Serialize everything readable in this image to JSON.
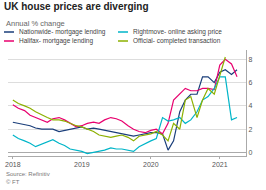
{
  "chart_data": {
    "type": "line",
    "title": "UK house prices are diverging",
    "subtitle": "Annual % change",
    "annotations": [
      "Source: Refinitiv\n© FT"
    ],
    "x": [
      2018.0,
      2018.08,
      2018.17,
      2018.25,
      2018.33,
      2018.42,
      2018.5,
      2018.58,
      2018.67,
      2018.75,
      2018.83,
      2018.92,
      2019.0,
      2019.08,
      2019.17,
      2019.25,
      2019.33,
      2019.42,
      2019.5,
      2019.58,
      2019.67,
      2019.75,
      2019.83,
      2019.92,
      2020.0,
      2020.08,
      2020.17,
      2020.25,
      2020.33,
      2020.42,
      2020.5,
      2020.58,
      2020.67,
      2020.75,
      2020.83,
      2020.92,
      2021.0,
      2021.08,
      2021.17,
      2021.25
    ],
    "series": [
      {
        "name": "Nationwide- mortgage lending",
        "color": "#1a3e7a",
        "values": [
          2.6,
          2.5,
          2.4,
          2.3,
          2.1,
          2.0,
          2.0,
          2.0,
          1.8,
          1.9,
          2.0,
          2.1,
          2.2,
          2.0,
          2.1,
          2.0,
          1.9,
          1.8,
          1.7,
          1.6,
          1.5,
          1.4,
          1.5,
          1.6,
          1.7,
          1.7,
          1.6,
          0.2,
          1.0,
          3.5,
          4.5,
          5.0,
          5.0,
          6.5,
          6.5,
          6.0,
          6.9,
          7.1,
          6.7,
          7.1
        ]
      },
      {
        "name": "Halifax- mortgage lending",
        "color": "#e8006e",
        "values": [
          4.1,
          3.8,
          3.6,
          3.2,
          3.0,
          2.8,
          2.6,
          2.9,
          3.0,
          2.8,
          2.5,
          2.2,
          2.3,
          2.5,
          2.6,
          2.5,
          2.8,
          3.0,
          2.9,
          2.7,
          2.3,
          2.0,
          1.8,
          1.7,
          1.9,
          2.0,
          1.6,
          2.5,
          4.5,
          5.0,
          5.5,
          5.3,
          5.3,
          5.5,
          5.5,
          5.4,
          7.5,
          8.0,
          7.6,
          6.5
        ]
      },
      {
        "name": "Rightmove- online asking price",
        "color": "#00b5c8",
        "values": [
          1.5,
          1.2,
          1.0,
          0.8,
          0.5,
          0.7,
          0.9,
          1.1,
          0.8,
          0.6,
          0.3,
          0.2,
          0.1,
          -0.1,
          0.0,
          0.1,
          0.2,
          0.4,
          0.3,
          0.3,
          0.2,
          0.1,
          0.5,
          0.8,
          1.0,
          1.2,
          3.0,
          2.7,
          2.8,
          3.0,
          2.5,
          2.8,
          3.5,
          4.5,
          4.8,
          5.5,
          6.5,
          6.5,
          2.8,
          3.0
        ]
      },
      {
        "name": "Official- completed transaction",
        "color": "#8db000",
        "values": [
          4.5,
          4.2,
          4.0,
          3.8,
          3.5,
          3.2,
          3.0,
          2.8,
          2.8,
          2.7,
          2.5,
          2.3,
          2.2,
          2.0,
          1.8,
          1.5,
          1.4,
          1.3,
          1.4,
          1.5,
          1.3,
          1.0,
          1.4,
          1.5,
          1.6,
          1.8,
          1.5,
          1.0,
          2.5,
          2.0,
          4.5,
          4.8,
          3.0,
          4.5,
          5.5,
          5.0,
          6.5,
          8.2,
          null,
          null
        ]
      }
    ],
    "xlim": [
      2017.93,
      2021.38
    ],
    "ylim": [
      -0.3,
      8.8
    ],
    "xticks": [
      2018,
      2019,
      2020,
      2021
    ],
    "yticks": [
      0,
      2,
      4,
      6,
      8
    ],
    "grid": true,
    "legend": "upper left"
  }
}
